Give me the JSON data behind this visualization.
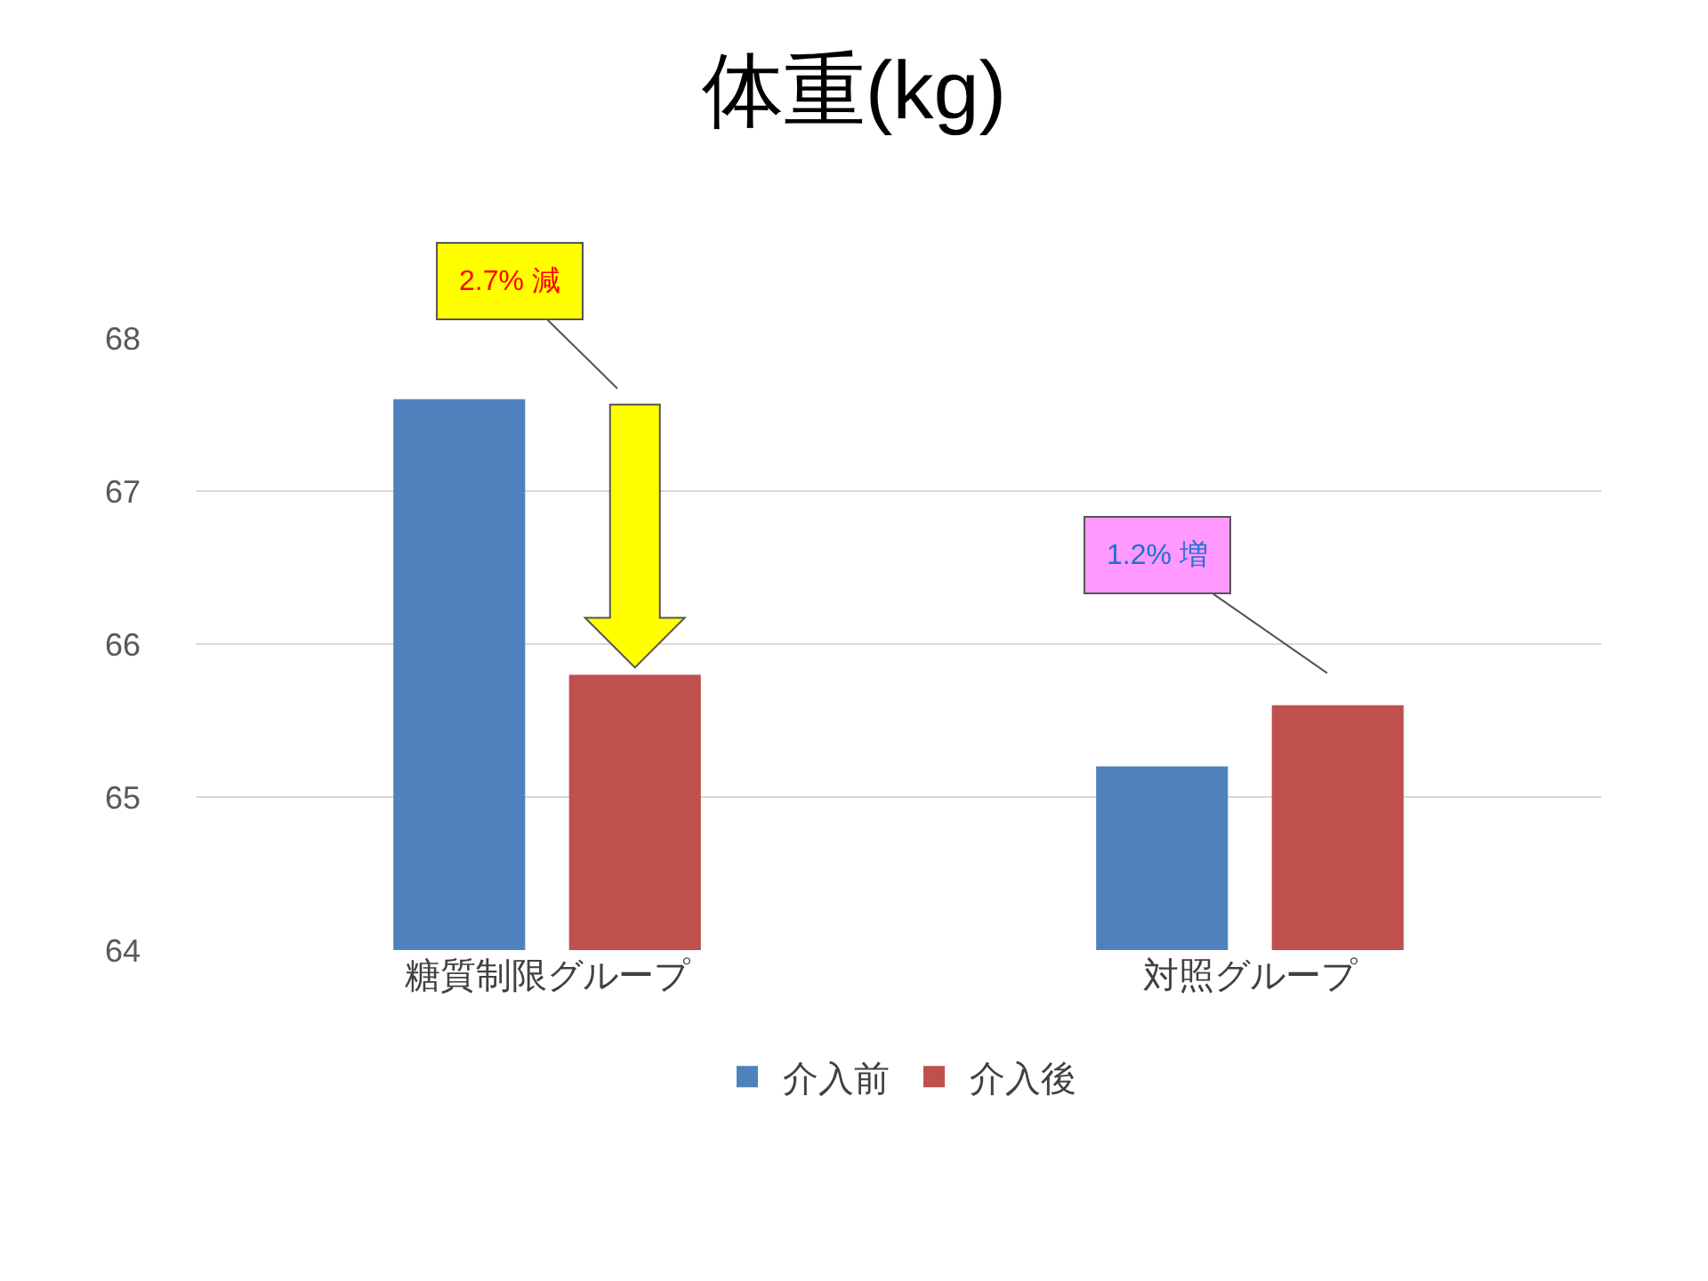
{
  "chart_data": {
    "type": "bar",
    "title": "体重(kg)",
    "categories": [
      "糖質制限グループ",
      "対照グループ"
    ],
    "series": [
      {
        "name": "介入前",
        "color": "#4f81bd",
        "values": [
          67.6,
          65.2
        ]
      },
      {
        "name": "介入後",
        "color": "#c0504d",
        "values": [
          65.8,
          65.6
        ]
      }
    ],
    "ylim": [
      64,
      68
    ],
    "yticks": [
      64,
      65,
      66,
      67,
      68
    ],
    "grid": "y",
    "legend": "bottom",
    "annotations": [
      "2.7% 減",
      "1.2% 増"
    ]
  }
}
